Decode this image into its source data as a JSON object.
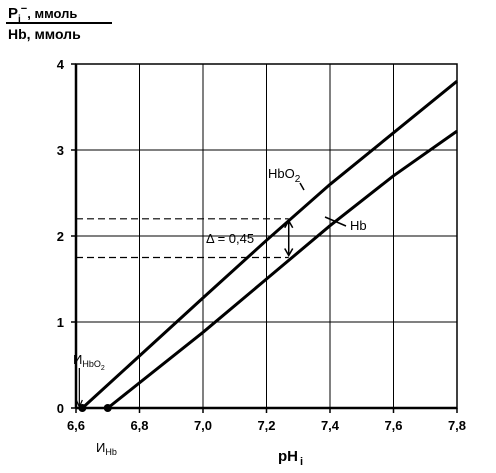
{
  "chart_data": {
    "type": "line",
    "title": "",
    "ylabel": {
      "numerator_symbol": "P",
      "numerator_sub": "i",
      "numerator_sup": "−",
      "numerator_unit": ", ммоль",
      "denominator": "Hb, ммоль"
    },
    "xlabel": {
      "base": "pH",
      "sub": "i"
    },
    "xlim": [
      6.6,
      7.8
    ],
    "ylim": [
      0,
      4
    ],
    "xticks": [
      "6,6",
      "6,8",
      "7,0",
      "7,2",
      "7,4",
      "7,6",
      "7,8"
    ],
    "yticks": [
      "0",
      "1",
      "2",
      "3",
      "4"
    ],
    "grid": true,
    "series": [
      {
        "name": "HbO",
        "name_sub": "2",
        "points": [
          [
            6.62,
            0
          ],
          [
            7.0,
            1.28
          ],
          [
            7.2,
            1.95
          ],
          [
            7.4,
            2.6
          ],
          [
            7.6,
            3.2
          ],
          [
            7.8,
            3.8
          ]
        ]
      },
      {
        "name": "Hb",
        "points": [
          [
            6.7,
            0
          ],
          [
            7.0,
            0.88
          ],
          [
            7.2,
            1.5
          ],
          [
            7.4,
            2.12
          ],
          [
            7.6,
            2.7
          ],
          [
            7.8,
            3.22
          ]
        ]
      }
    ],
    "annotations": {
      "delta_label": "Δ = 0,45",
      "delta_upper_y": 2.2,
      "delta_lower_y": 1.75,
      "delta_x": 7.27,
      "iso_hbo2": {
        "main": "И",
        "sub": "HbO",
        "sub2": "2",
        "x": 6.62
      },
      "iso_hb": {
        "main": "И",
        "sub": "Hb",
        "x": 6.7
      }
    }
  }
}
